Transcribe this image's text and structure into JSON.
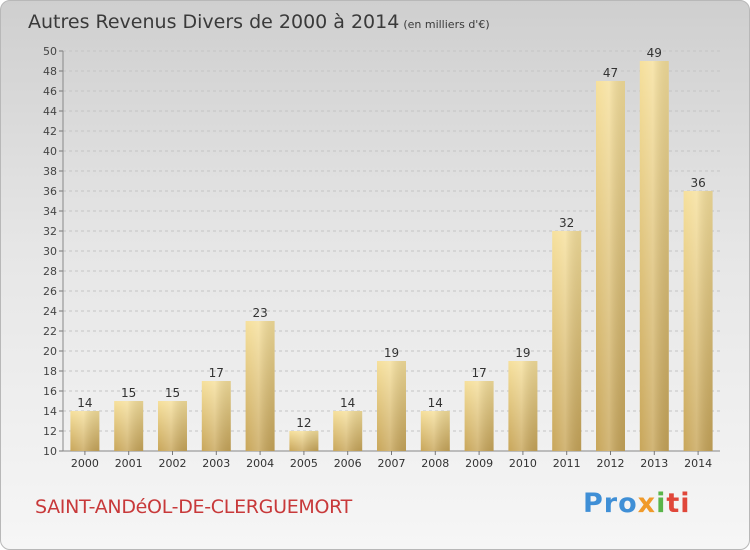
{
  "title": "Autres Revenus Divers de 2000 à 2014",
  "title_unit": "(en milliers d'€)",
  "commune": "SAINT-ANDéOL-DE-CLERGUEMORT",
  "logo": {
    "text": "Proxiti",
    "parts": [
      "Pro",
      "x",
      "i",
      "ti"
    ]
  },
  "colors": {
    "bar_top": "#f4dc96",
    "bar_bottom": "#c9a85a",
    "title": "#3a3a3a",
    "commune": "#c8393a"
  },
  "chart_data": {
    "type": "bar",
    "categories": [
      "2000",
      "2001",
      "2002",
      "2003",
      "2004",
      "2005",
      "2006",
      "2007",
      "2008",
      "2009",
      "2010",
      "2011",
      "2012",
      "2013",
      "2014"
    ],
    "values": [
      14,
      15,
      15,
      17,
      23,
      12,
      14,
      19,
      14,
      17,
      19,
      32,
      47,
      49,
      36
    ],
    "ylim": [
      10,
      50
    ],
    "yticks": [
      10,
      12,
      14,
      16,
      18,
      20,
      22,
      24,
      26,
      28,
      30,
      32,
      34,
      36,
      38,
      40,
      42,
      44,
      46,
      48,
      50
    ],
    "grid": true,
    "data_labels": true
  }
}
